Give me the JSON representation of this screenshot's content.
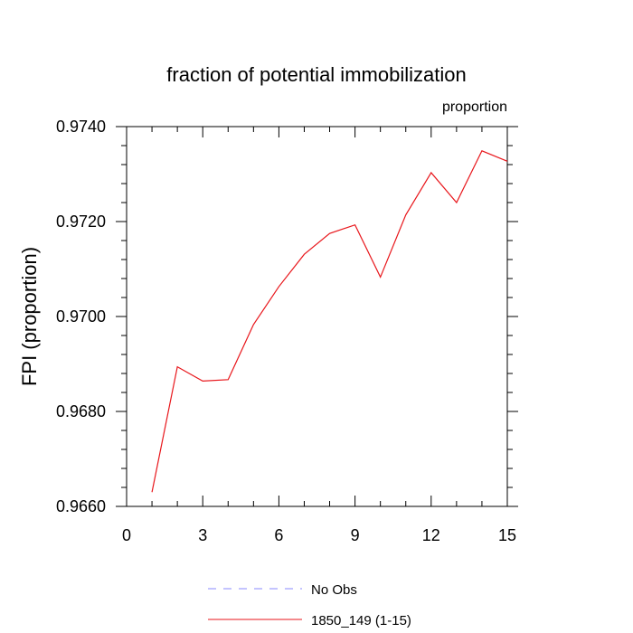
{
  "chart_data": {
    "type": "line",
    "title": "fraction of potential immobilization",
    "units_label": "proportion",
    "ylabel": "FPI  (proportion)",
    "xlabel": "",
    "xlim": [
      0,
      15
    ],
    "ylim": [
      0.966,
      0.974
    ],
    "x_ticks": [
      0,
      3,
      6,
      9,
      12,
      15
    ],
    "x_tick_labels": [
      "0",
      "3",
      "6",
      "9",
      "12",
      "15"
    ],
    "y_ticks": [
      0.966,
      0.968,
      0.97,
      0.972,
      0.974
    ],
    "y_tick_labels": [
      "0.9660",
      "0.9680",
      "0.9700",
      "0.9720",
      "0.9740"
    ],
    "grid": false,
    "legend_position": "bottom",
    "series": [
      {
        "name": "1850_149 (1-15)",
        "color": "#e8161b",
        "style": "solid",
        "x": [
          1,
          2,
          3,
          4,
          5,
          6,
          7,
          8,
          9,
          10,
          11,
          12,
          13,
          14,
          15
        ],
        "y": [
          0.9663,
          0.96894,
          0.96864,
          0.96867,
          0.96983,
          0.97063,
          0.97131,
          0.97175,
          0.97193,
          0.97083,
          0.97214,
          0.97303,
          0.9724,
          0.97349,
          0.97327
        ]
      },
      {
        "name": "No Obs",
        "color": "#8888ff",
        "style": "dashed",
        "x": [],
        "y": []
      }
    ]
  }
}
